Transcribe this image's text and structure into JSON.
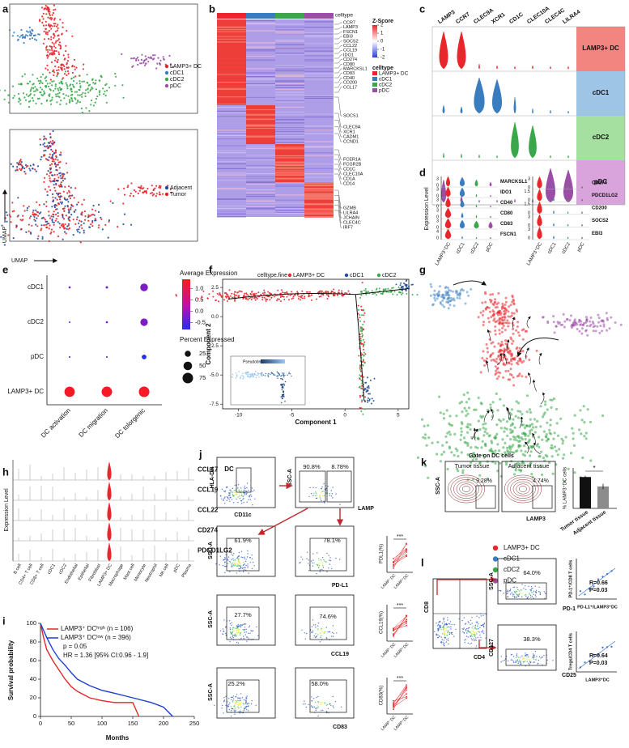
{
  "panel_labels": [
    "a",
    "b",
    "c",
    "d",
    "e",
    "f",
    "g",
    "h",
    "i",
    "j",
    "k",
    "l"
  ],
  "a": {
    "legend_top": [
      "LAMP3+ DC",
      "cDC1",
      "cDC2",
      "pDC"
    ],
    "colors_top": [
      "#e8262b",
      "#3a7dbf",
      "#3aa84a",
      "#9a4ea5"
    ],
    "legend_bottom": [
      "Adjacent",
      "Tumor"
    ],
    "colors_bottom": [
      "#1f4e9c",
      "#e8262b"
    ],
    "x_label": "UMAP",
    "y_label": "UMAP"
  },
  "b": {
    "celltype_bar_title": "celltype",
    "zscore_title": "Z-Score",
    "zscore_ticks": [
      2,
      1,
      0,
      -1,
      -2
    ],
    "legend_title": "celltype",
    "legend": [
      "LAMP3+ DC",
      "cDC1",
      "cDC2",
      "pDC"
    ],
    "gene_groups": [
      [
        "CCR7",
        "LAMP3",
        "FSCN1",
        "EBI3",
        "SOCS2",
        "CCL22",
        "CCL19",
        "IDO1",
        "CD274",
        "CD80",
        "MARCKSL1",
        "CD83",
        "CD40",
        "CD200",
        "CCL17",
        "SOCS1"
      ],
      [
        "CLEC9A",
        "XCR1",
        "CADM1",
        "CCND1"
      ],
      [
        "FCER1A",
        "FCGR2B",
        "CD1C",
        "CLEC10A",
        "CD1A",
        "CD14"
      ],
      [
        "GZMB",
        "LILRA4",
        "JCHAIN",
        "CLEC4C",
        "IRF7"
      ]
    ]
  },
  "c": {
    "genes": [
      "LAMP3",
      "CCR7",
      "CLEC9A",
      "XCR1",
      "CD1C",
      "CLEC10A",
      "CLEC4C",
      "LILRA4"
    ],
    "rows": [
      "LAMP3+ DC",
      "cDC1",
      "cDC2",
      "pDC"
    ]
  },
  "d": {
    "y_label": "Expression Level",
    "left_genes": [
      "MARCKSL1",
      "IDO1",
      "CD40",
      "CD80",
      "CD83",
      "FSCN1"
    ],
    "left_ticks": [
      [
        0,
        3
      ],
      [
        0,
        3
      ],
      [
        0,
        3
      ],
      [
        0,
        3
      ],
      [
        0,
        3
      ],
      [
        0,
        4
      ]
    ],
    "right_genes": [
      "CD274",
      "PDCD1LG2",
      "CD200",
      "SOCS2",
      "EBI3"
    ],
    "right_ticks": [
      [
        0,
        3
      ],
      [
        0,
        1.5
      ],
      [
        0,
        1.5
      ],
      [
        0,
        3
      ],
      [
        0,
        3
      ]
    ],
    "categories": [
      "LAMP3⁺DC",
      "cDC1",
      "cDC2",
      "pDC"
    ]
  },
  "e": {
    "type": "dot",
    "y_categories": [
      "cDC1",
      "cDC2",
      "pDC",
      "LAMP3+ DC"
    ],
    "x_categories": [
      "DC activation",
      "DC migration",
      "DC tolorgenic"
    ],
    "avg_expression": [
      [
        -0.3,
        -0.2,
        -0.2
      ],
      [
        -0.3,
        -0.3,
        -0.2
      ],
      [
        -0.5,
        -0.5,
        -0.8
      ],
      [
        1.3,
        1.3,
        1.3
      ]
    ],
    "percent_expressed": [
      [
        3,
        4,
        40
      ],
      [
        2,
        3,
        38
      ],
      [
        2,
        2,
        15
      ],
      [
        72,
        74,
        76
      ]
    ],
    "color_title": "Average Expression",
    "clim": [
      -0.8,
      1.4
    ],
    "color_ticks": [
      {
        "value": 1,
        "label": "1.0"
      },
      {
        "value": 0.5,
        "label": "0.5"
      },
      {
        "value": 0,
        "label": "0.0"
      },
      -0.5
    ],
    "size_title": "Percent Expressed",
    "size_ticks": [
      25,
      50,
      75
    ]
  },
  "f": {
    "legend_title": "celltype.fine",
    "legend": [
      "LAMP3+ DC",
      "cDC1",
      "cDC2"
    ],
    "colors": [
      "#e8262b",
      "#1f4e9c",
      "#3aa84a"
    ],
    "x_label": "Component 1",
    "y_label": "Component 2",
    "xlim": [
      -11.5,
      6
    ],
    "xticks": [
      -10,
      -5,
      0,
      5
    ],
    "ylim": [
      -7.9,
      3.2
    ],
    "yticks": [
      2.5,
      {
        "value": 0,
        "label": "0.0"
      },
      -2.5,
      {
        "value": -5,
        "label": "-5.0"
      },
      -7.5
    ],
    "inset_title": "Pseudotime"
  },
  "g": {
    "legend": [
      "LAMP3+ DC",
      "cDC1",
      "cDC2",
      "pDC"
    ],
    "colors": [
      "#e8262b",
      "#3a7dbf",
      "#3aa84a",
      "#9a4ea5"
    ]
  },
  "h": {
    "y_label": "Expression Level",
    "genes": [
      "CCL17",
      "CCL19",
      "CCL22",
      "CD274",
      "PDCD1LG2"
    ],
    "cell_types": [
      "B cell",
      "CD4+ T cell",
      "CD8+ T cell",
      "cDC1",
      "cDC2",
      "Endothelial",
      "Epithelial",
      "Fibroblast",
      "LAMP3+ DC",
      "Macrophage",
      "Mast cell",
      "Monocyte",
      "Neutrophil",
      "NK cell",
      "pDC",
      "Plasma"
    ]
  },
  "i": {
    "type": "line",
    "x_label": "Months",
    "y_label": "Survival probability",
    "xlim": [
      0,
      250
    ],
    "xticks": [
      0,
      50,
      100,
      150,
      200,
      250
    ],
    "ylim": [
      0,
      100
    ],
    "yticks": [
      0,
      20,
      40,
      60,
      80,
      100
    ],
    "annotations": [
      "p = 0.05",
      "HR = 1.36 [95% CI:0.96 - 1.9]"
    ],
    "series": [
      {
        "name": "LAMP3⁺ DCʰⁱᵍʰ (n = 106)",
        "color": "#e8262b",
        "x": [
          0,
          5,
          10,
          20,
          30,
          40,
          50,
          60,
          80,
          100,
          120,
          150,
          160
        ],
        "values": [
          100,
          85,
          72,
          60,
          50,
          40,
          32,
          27,
          20,
          17,
          15,
          15,
          0
        ]
      },
      {
        "name": "LAMP3⁺ DCˡᵒʷ (n = 396)",
        "color": "#1f3fd0",
        "x": [
          0,
          10,
          20,
          30,
          40,
          50,
          60,
          80,
          100,
          120,
          150,
          180,
          200,
          215
        ],
        "values": [
          100,
          85,
          72,
          62,
          55,
          47,
          40,
          33,
          28,
          25,
          20,
          15,
          10,
          0
        ]
      }
    ]
  },
  "j": {
    "dc_gate": "DC",
    "hla_dr": "HLA-DR",
    "cd11c": "CD11c",
    "ssc_a": "SSC-A",
    "lamp": "LAMP",
    "pct": [
      "90.8%",
      "8.78%",
      "61.9%",
      "78.1%",
      "27.7%",
      "74.6%",
      "25.2%",
      "58.0%"
    ],
    "markers": [
      "PD-L1",
      "CCL19",
      "CD83"
    ],
    "summary_y": [
      "PDL1(%)",
      "CCL19(%)",
      "CD83(%)"
    ],
    "summary_x": [
      "LAMP⁻DC",
      "LAMP⁺DC"
    ],
    "significance": [
      "***",
      "***",
      "***"
    ]
  },
  "k": {
    "title": "Gate on DC cells",
    "tissues": [
      "Tumor tissue",
      "Adjacent tissue"
    ],
    "pct": [
      "9.28%",
      "4.74%"
    ],
    "y_axis": "SSC-A",
    "x_axis": "LAMP3",
    "bar_y_label": "% LAMP3⁺DC cells",
    "bar_values": [
      9.3,
      6.5
    ],
    "bar_errors": [
      0.4,
      0.8
    ],
    "bar_ylim": [
      0,
      12
    ],
    "bar_colors": [
      "#111111",
      "#8c8c8c"
    ],
    "significance": "*"
  },
  "l": {
    "cd8": "CD8",
    "cd4": "CD4",
    "ssc_a": "SSC-A",
    "cd127": "CD127",
    "pct": [
      "64.0%",
      "38.3%"
    ],
    "markers": [
      "PD-1",
      "CD25"
    ],
    "correlations": [
      {
        "r": "R=0.66",
        "p": "P=0.03",
        "y_label": "PD-1⁺/CD8 T cells",
        "x_label": "PD-L1⁺/LAMP3⁺DC"
      },
      {
        "r": "R=0.64",
        "p": "P=0.03",
        "y_label": "Tregs/CD4 T cells",
        "x_label": "LAMP3⁺DC"
      }
    ]
  }
}
